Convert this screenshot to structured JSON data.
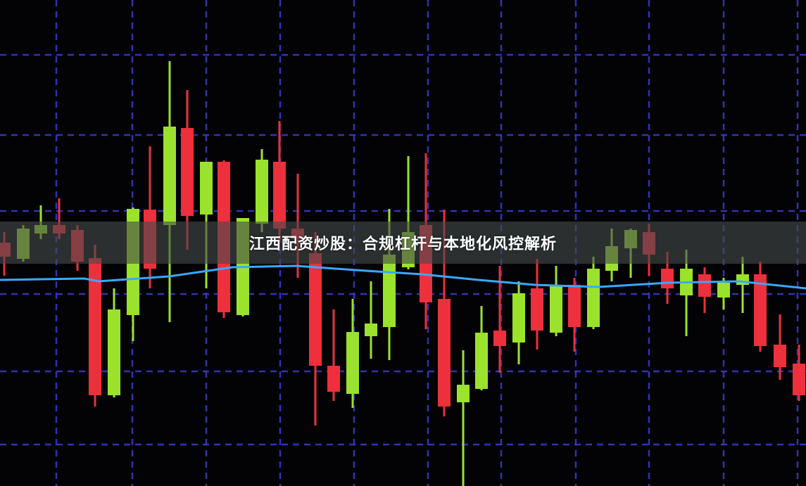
{
  "title": "江西配资炒股：合规杠杆与本地化风控解析",
  "colors": {
    "background": "#030305",
    "grid": "#3b3ccc",
    "bullish_candle": "#9be22d",
    "bearish_candle": "#ee2f3c",
    "moving_average_line": "#3aa8ff",
    "banner": "#464b4b"
  }
}
